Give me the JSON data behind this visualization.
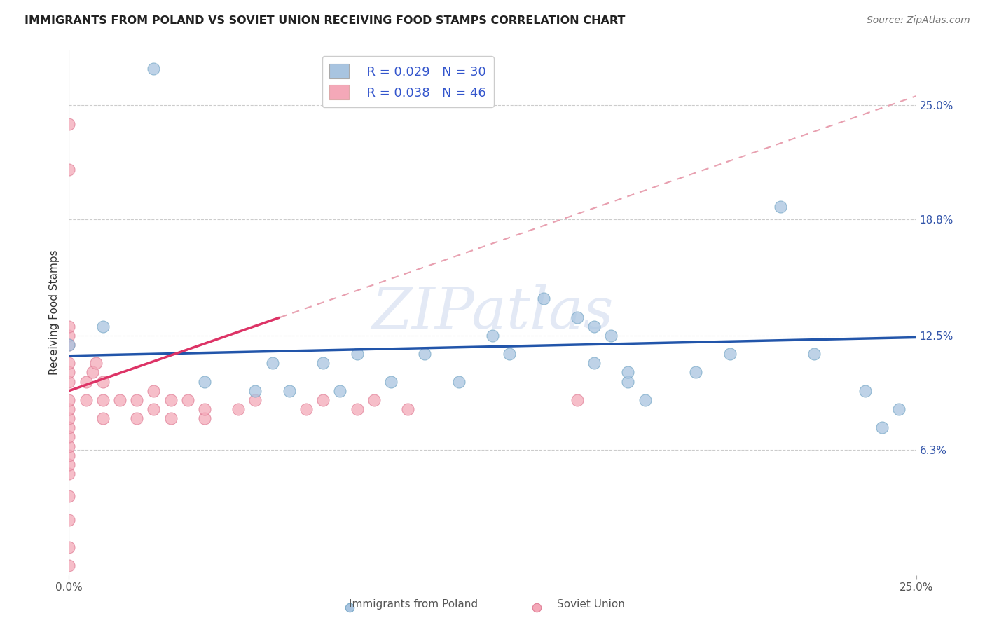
{
  "title": "IMMIGRANTS FROM POLAND VS SOVIET UNION RECEIVING FOOD STAMPS CORRELATION CHART",
  "source": "Source: ZipAtlas.com",
  "ylabel": "Receiving Food Stamps",
  "xlim": [
    0.0,
    0.25
  ],
  "ylim": [
    -0.005,
    0.28
  ],
  "yticks": [
    0.063,
    0.125,
    0.188,
    0.25
  ],
  "ytick_labels": [
    "6.3%",
    "12.5%",
    "18.8%",
    "25.0%"
  ],
  "poland_color": "#a8c4e0",
  "poland_edge_color": "#7aaac8",
  "soviet_color": "#f4a8b8",
  "soviet_edge_color": "#e08098",
  "poland_line_color": "#2255aa",
  "soviet_line_color": "#dd3366",
  "soviet_dash_color": "#e8a0b0",
  "watermark": "ZIPatlas",
  "legend_poland_r": "R = 0.029",
  "legend_poland_n": "N = 30",
  "legend_soviet_r": "R = 0.038",
  "legend_soviet_n": "N = 46",
  "poland_x": [
    0.0,
    0.01,
    0.025,
    0.04,
    0.055,
    0.065,
    0.075,
    0.085,
    0.095,
    0.105,
    0.115,
    0.125,
    0.13,
    0.14,
    0.15,
    0.155,
    0.16,
    0.165,
    0.17,
    0.185,
    0.195,
    0.21,
    0.22,
    0.235,
    0.245,
    0.06,
    0.08,
    0.155,
    0.165,
    0.24
  ],
  "poland_y": [
    0.12,
    0.13,
    0.27,
    0.1,
    0.095,
    0.095,
    0.11,
    0.115,
    0.1,
    0.115,
    0.1,
    0.125,
    0.115,
    0.145,
    0.135,
    0.11,
    0.125,
    0.1,
    0.09,
    0.105,
    0.115,
    0.195,
    0.115,
    0.095,
    0.085,
    0.11,
    0.095,
    0.13,
    0.105,
    0.075
  ],
  "soviet_x": [
    0.0,
    0.0,
    0.0,
    0.0,
    0.0,
    0.0,
    0.0,
    0.0,
    0.0,
    0.0,
    0.0,
    0.0,
    0.0,
    0.0,
    0.0,
    0.0,
    0.0,
    0.0,
    0.0,
    0.0,
    0.005,
    0.005,
    0.007,
    0.008,
    0.01,
    0.01,
    0.01,
    0.015,
    0.02,
    0.02,
    0.025,
    0.025,
    0.03,
    0.03,
    0.035,
    0.04,
    0.04,
    0.05,
    0.055,
    0.07,
    0.075,
    0.085,
    0.09,
    0.1,
    0.15,
    0.0
  ],
  "soviet_y": [
    0.0,
    0.01,
    0.025,
    0.038,
    0.05,
    0.055,
    0.06,
    0.065,
    0.07,
    0.075,
    0.08,
    0.085,
    0.09,
    0.1,
    0.105,
    0.11,
    0.12,
    0.125,
    0.13,
    0.215,
    0.09,
    0.1,
    0.105,
    0.11,
    0.08,
    0.09,
    0.1,
    0.09,
    0.08,
    0.09,
    0.085,
    0.095,
    0.08,
    0.09,
    0.09,
    0.08,
    0.085,
    0.085,
    0.09,
    0.085,
    0.09,
    0.085,
    0.09,
    0.085,
    0.09,
    0.24
  ],
  "poland_line_x0": 0.0,
  "poland_line_y0": 0.114,
  "poland_line_x1": 0.25,
  "poland_line_y1": 0.124,
  "soviet_line_x0": 0.0,
  "soviet_line_y0": 0.095,
  "soviet_line_x1": 0.25,
  "soviet_line_y1": 0.255
}
